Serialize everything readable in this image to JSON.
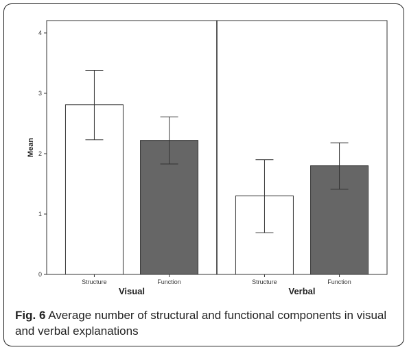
{
  "chart_data": {
    "type": "bar",
    "ylabel": "Mean",
    "ylim": [
      0,
      4.2
    ],
    "yticks": [
      0,
      1,
      2,
      3,
      4
    ],
    "grid": false,
    "panels": [
      {
        "label": "Visual",
        "categories": [
          "Structure",
          "Function"
        ],
        "values": [
          2.81,
          2.22
        ],
        "error_low": [
          2.23,
          1.83
        ],
        "error_high": [
          3.38,
          2.61
        ],
        "colors": [
          "#ffffff",
          "#666666"
        ]
      },
      {
        "label": "Verbal",
        "categories": [
          "Structure",
          "Function"
        ],
        "values": [
          1.3,
          1.8
        ],
        "error_low": [
          0.69,
          1.41
        ],
        "error_high": [
          1.9,
          2.18
        ],
        "colors": [
          "#ffffff",
          "#666666"
        ]
      }
    ]
  },
  "caption": {
    "label": "Fig. 6",
    "text": " Average number of structural and functional components in visual and verbal explanations"
  }
}
